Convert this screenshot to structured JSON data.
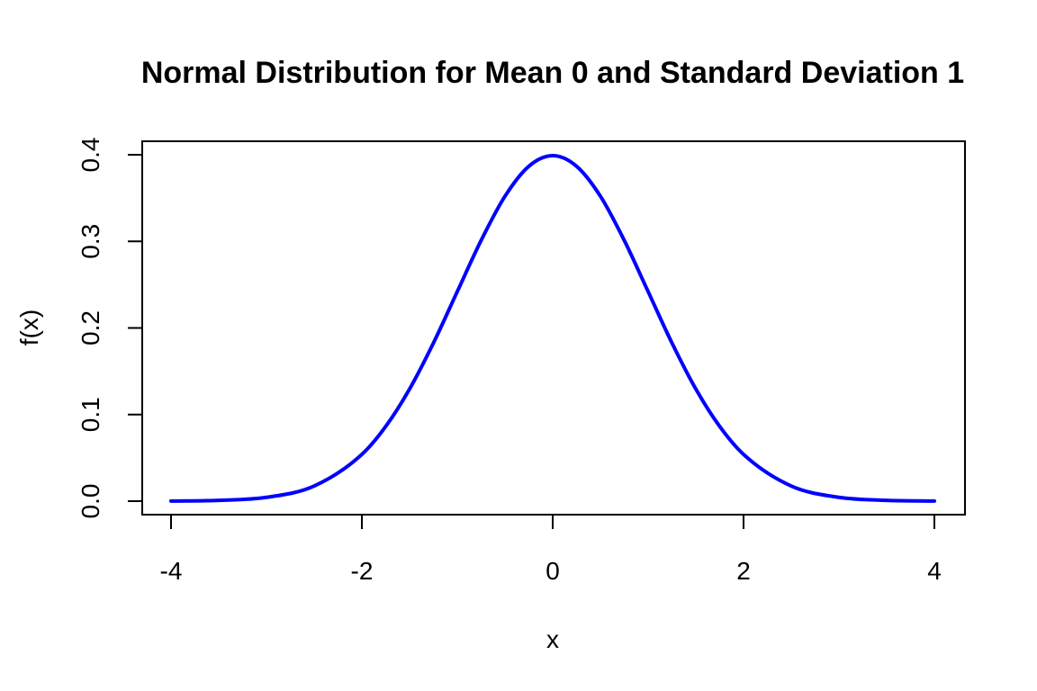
{
  "chart_data": {
    "type": "line",
    "title": "Normal Distribution for Mean 0 and Standard Deviation 1",
    "xlabel": "x",
    "ylabel": "f(x)",
    "xlim": [
      -4,
      4
    ],
    "ylim": [
      0,
      0.4
    ],
    "x_ticks": [
      -4,
      -2,
      0,
      2,
      4
    ],
    "x_tick_labels": [
      "-4",
      "-2",
      "0",
      "2",
      "4"
    ],
    "y_ticks": [
      0.0,
      0.1,
      0.2,
      0.3,
      0.4
    ],
    "y_tick_labels": [
      "0.0",
      "0.1",
      "0.2",
      "0.3",
      "0.4"
    ],
    "grid": false,
    "legend": "none",
    "series": [
      {
        "color": "#0000ff",
        "x": [
          -4.0,
          -3.5,
          -3.0,
          -2.5,
          -2.0,
          -1.75,
          -1.5,
          -1.25,
          -1.0,
          -0.75,
          -0.5,
          -0.25,
          0.0,
          0.25,
          0.5,
          0.75,
          1.0,
          1.25,
          1.5,
          1.75,
          2.0,
          2.5,
          3.0,
          3.5,
          4.0
        ],
        "y": [
          0.0001,
          0.0009,
          0.0044,
          0.0175,
          0.054,
          0.0863,
          0.1295,
          0.1826,
          0.242,
          0.3011,
          0.3521,
          0.3867,
          0.3989,
          0.3867,
          0.3521,
          0.3011,
          0.242,
          0.1826,
          0.1295,
          0.0863,
          0.054,
          0.0175,
          0.0044,
          0.0009,
          0.0001
        ]
      }
    ]
  }
}
